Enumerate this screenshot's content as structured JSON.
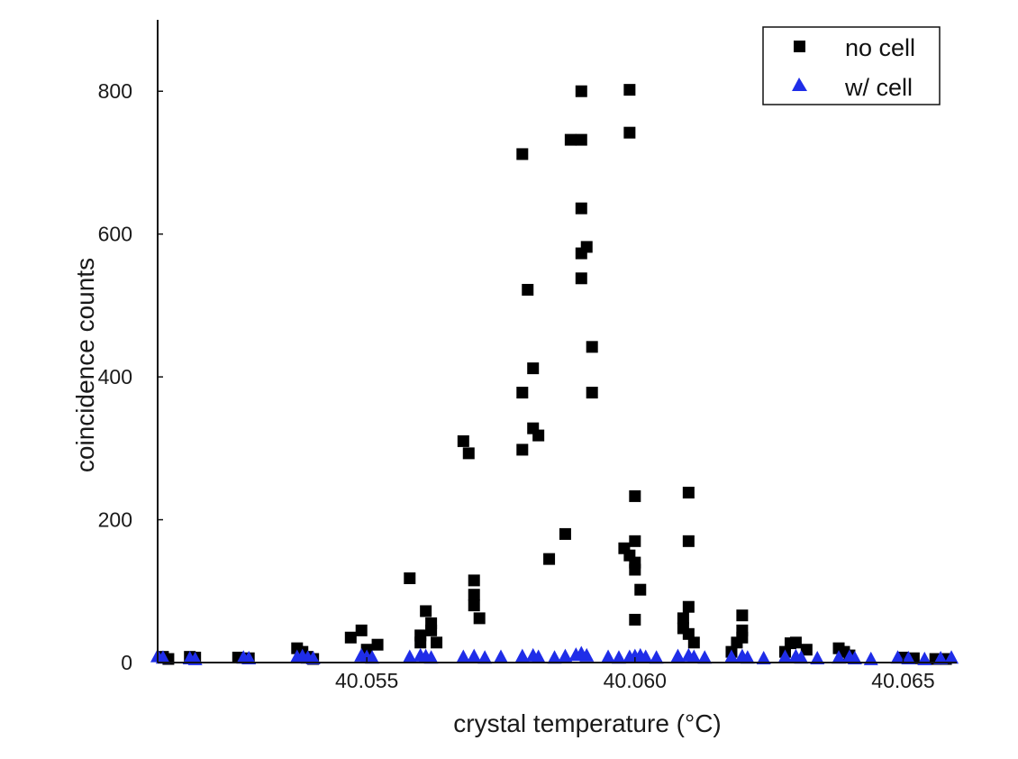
{
  "chart_data": {
    "type": "scatter",
    "xlabel": "crystal temperature (°C)",
    "ylabel": "coincidence counts",
    "xlim": [
      40.0511,
      40.066
    ],
    "ylim": [
      0,
      900
    ],
    "x_ticks": [
      40.055,
      40.06,
      40.065
    ],
    "x_tick_labels": [
      "40.055",
      "40.060",
      "40.065"
    ],
    "y_ticks": [
      0,
      200,
      400,
      600,
      800
    ],
    "y_tick_labels": [
      "0",
      "200",
      "400",
      "600",
      "800"
    ],
    "grid": false,
    "legend_position": "top-right",
    "series": [
      {
        "name": "no cell",
        "marker": "square",
        "color": "#000000",
        "points": [
          [
            40.0512,
            8
          ],
          [
            40.0513,
            5
          ],
          [
            40.0517,
            8
          ],
          [
            40.0518,
            7
          ],
          [
            40.0526,
            7
          ],
          [
            40.0528,
            6
          ],
          [
            40.0537,
            20
          ],
          [
            40.0538,
            15
          ],
          [
            40.0539,
            8
          ],
          [
            40.054,
            5
          ],
          [
            40.0547,
            35
          ],
          [
            40.0549,
            45
          ],
          [
            40.055,
            18
          ],
          [
            40.0552,
            25
          ],
          [
            40.0558,
            118
          ],
          [
            40.056,
            28
          ],
          [
            40.056,
            38
          ],
          [
            40.0561,
            72
          ],
          [
            40.0562,
            45
          ],
          [
            40.0562,
            55
          ],
          [
            40.0563,
            28
          ],
          [
            40.0568,
            310
          ],
          [
            40.0569,
            293
          ],
          [
            40.057,
            115
          ],
          [
            40.057,
            95
          ],
          [
            40.057,
            80
          ],
          [
            40.0571,
            62
          ],
          [
            40.0579,
            712
          ],
          [
            40.0579,
            378
          ],
          [
            40.0579,
            298
          ],
          [
            40.058,
            522
          ],
          [
            40.0581,
            412
          ],
          [
            40.0581,
            328
          ],
          [
            40.0582,
            318
          ],
          [
            40.0584,
            145
          ],
          [
            40.0587,
            180
          ],
          [
            40.0588,
            732
          ],
          [
            40.059,
            800
          ],
          [
            40.059,
            732
          ],
          [
            40.059,
            636
          ],
          [
            40.059,
            573
          ],
          [
            40.059,
            538
          ],
          [
            40.0591,
            582
          ],
          [
            40.0592,
            442
          ],
          [
            40.0592,
            378
          ],
          [
            40.0598,
            160
          ],
          [
            40.0599,
            802
          ],
          [
            40.0599,
            742
          ],
          [
            40.0599,
            150
          ],
          [
            40.06,
            170
          ],
          [
            40.06,
            233
          ],
          [
            40.06,
            140
          ],
          [
            40.06,
            130
          ],
          [
            40.06,
            60
          ],
          [
            40.0601,
            102
          ],
          [
            40.0609,
            62
          ],
          [
            40.0609,
            48
          ],
          [
            40.061,
            238
          ],
          [
            40.061,
            170
          ],
          [
            40.061,
            78
          ],
          [
            40.061,
            40
          ],
          [
            40.0611,
            28
          ],
          [
            40.0618,
            15
          ],
          [
            40.0619,
            28
          ],
          [
            40.062,
            35
          ],
          [
            40.062,
            45
          ],
          [
            40.062,
            66
          ],
          [
            40.0628,
            15
          ],
          [
            40.0629,
            27
          ],
          [
            40.063,
            28
          ],
          [
            40.0632,
            18
          ],
          [
            40.0638,
            20
          ],
          [
            40.0639,
            15
          ],
          [
            40.064,
            10
          ],
          [
            40.065,
            7
          ],
          [
            40.0652,
            6
          ],
          [
            40.0656,
            5
          ],
          [
            40.0658,
            5
          ]
        ]
      },
      {
        "name": "w/ cell",
        "marker": "triangle",
        "color": "#1f2de8",
        "points": [
          [
            40.0511,
            8
          ],
          [
            40.0512,
            6
          ],
          [
            40.0517,
            5
          ],
          [
            40.0518,
            4
          ],
          [
            40.0527,
            6
          ],
          [
            40.0528,
            5
          ],
          [
            40.0537,
            7
          ],
          [
            40.0538,
            8
          ],
          [
            40.0539,
            6
          ],
          [
            40.054,
            5
          ],
          [
            40.0549,
            9
          ],
          [
            40.055,
            7
          ],
          [
            40.0551,
            6
          ],
          [
            40.0558,
            7
          ],
          [
            40.056,
            9
          ],
          [
            40.0561,
            8
          ],
          [
            40.0562,
            6
          ],
          [
            40.0568,
            7
          ],
          [
            40.057,
            8
          ],
          [
            40.0572,
            6
          ],
          [
            40.0575,
            7
          ],
          [
            40.0579,
            8
          ],
          [
            40.0581,
            9
          ],
          [
            40.0582,
            7
          ],
          [
            40.0585,
            6
          ],
          [
            40.0587,
            8
          ],
          [
            40.0589,
            10
          ],
          [
            40.059,
            12
          ],
          [
            40.0591,
            9
          ],
          [
            40.0595,
            7
          ],
          [
            40.0597,
            6
          ],
          [
            40.0599,
            7
          ],
          [
            40.06,
            8
          ],
          [
            40.0601,
            9
          ],
          [
            40.0602,
            7
          ],
          [
            40.0604,
            6
          ],
          [
            40.0608,
            8
          ],
          [
            40.061,
            9
          ],
          [
            40.0611,
            7
          ],
          [
            40.0613,
            6
          ],
          [
            40.0618,
            7
          ],
          [
            40.062,
            8
          ],
          [
            40.0621,
            6
          ],
          [
            40.0624,
            5
          ],
          [
            40.0628,
            7
          ],
          [
            40.063,
            8
          ],
          [
            40.0631,
            6
          ],
          [
            40.0634,
            5
          ],
          [
            40.0638,
            6
          ],
          [
            40.064,
            7
          ],
          [
            40.0641,
            5
          ],
          [
            40.0644,
            4
          ],
          [
            40.0649,
            6
          ],
          [
            40.0651,
            5
          ],
          [
            40.0654,
            4
          ],
          [
            40.0657,
            5
          ],
          [
            40.0659,
            6
          ]
        ]
      }
    ]
  }
}
